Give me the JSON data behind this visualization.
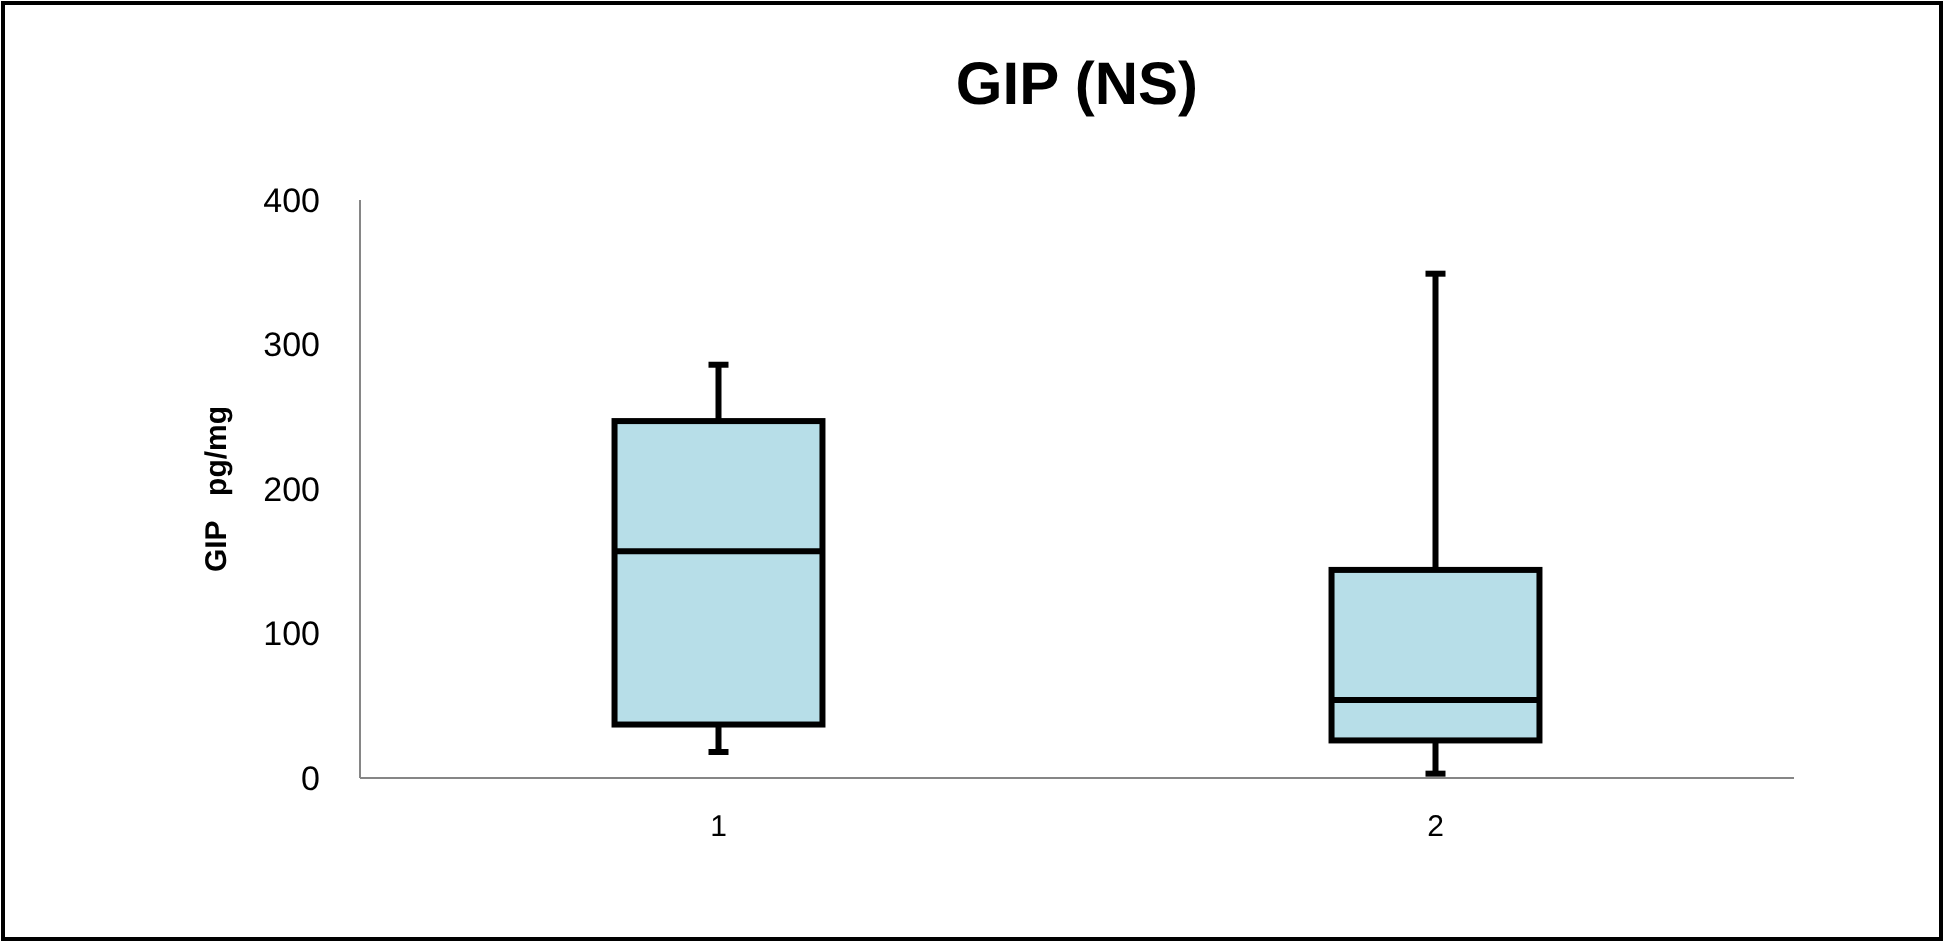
{
  "chart_data": {
    "type": "box",
    "title": "GIP (NS)",
    "ylabel": "GIP   pg/mg",
    "categories": [
      "1",
      "2"
    ],
    "ylim": [
      0,
      400
    ],
    "yticks": [
      0,
      100,
      200,
      300,
      400
    ],
    "grid": false,
    "series": [
      {
        "color": "#b7dee8",
        "boxes": [
          {
            "low": 18,
            "q1": 37,
            "median": 157,
            "q3": 247,
            "high": 286
          },
          {
            "low": 3,
            "q1": 26,
            "median": 54,
            "q3": 144,
            "high": 349
          }
        ]
      }
    ]
  }
}
